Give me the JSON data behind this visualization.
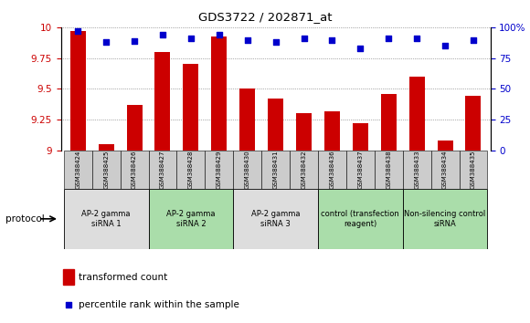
{
  "title": "GDS3722 / 202871_at",
  "samples": [
    "GSM388424",
    "GSM388425",
    "GSM388426",
    "GSM388427",
    "GSM388428",
    "GSM388429",
    "GSM388430",
    "GSM388431",
    "GSM388432",
    "GSM388436",
    "GSM388437",
    "GSM388438",
    "GSM388433",
    "GSM388434",
    "GSM388435"
  ],
  "transformed_count": [
    9.97,
    9.05,
    9.37,
    9.8,
    9.7,
    9.93,
    9.5,
    9.42,
    9.3,
    9.32,
    9.22,
    9.46,
    9.6,
    9.08,
    9.44
  ],
  "percentile_rank": [
    97,
    88,
    89,
    94,
    91,
    94,
    90,
    88,
    91,
    90,
    83,
    91,
    91,
    85,
    90
  ],
  "bar_color": "#cc0000",
  "dot_color": "#0000cc",
  "ylim_left": [
    9.0,
    10.0
  ],
  "ylim_right": [
    0,
    100
  ],
  "yticks_left": [
    9.0,
    9.25,
    9.5,
    9.75,
    10.0
  ],
  "yticks_right": [
    0,
    25,
    50,
    75,
    100
  ],
  "groups": [
    {
      "label": "AP-2 gamma\nsiRNA 1",
      "indices": [
        0,
        1,
        2
      ],
      "color": "#dddddd"
    },
    {
      "label": "AP-2 gamma\nsiRNA 2",
      "indices": [
        3,
        4,
        5
      ],
      "color": "#aaddaa"
    },
    {
      "label": "AP-2 gamma\nsiRNA 3",
      "indices": [
        6,
        7,
        8
      ],
      "color": "#dddddd"
    },
    {
      "label": "control (transfection\nreagent)",
      "indices": [
        9,
        10,
        11
      ],
      "color": "#aaddaa"
    },
    {
      "label": "Non-silencing control\nsiRNA",
      "indices": [
        12,
        13,
        14
      ],
      "color": "#aaddaa"
    }
  ],
  "legend_transformed": "transformed count",
  "legend_percentile": "percentile rank within the sample",
  "protocol_label": "protocol",
  "background_color": "#ffffff",
  "grid_color": "#666666",
  "bar_width": 0.55,
  "sample_box_color": "#cccccc"
}
